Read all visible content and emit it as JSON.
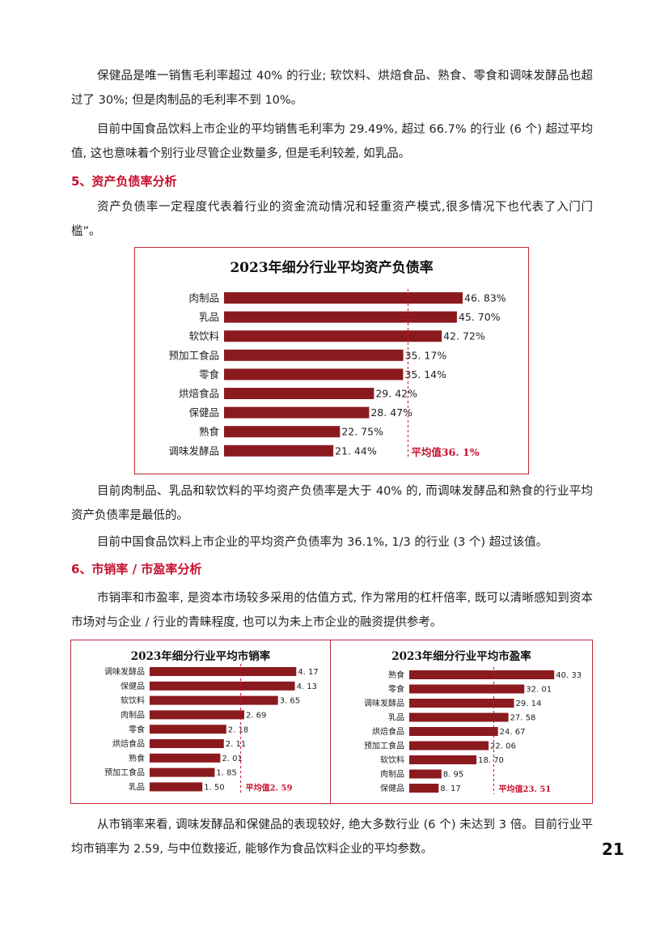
{
  "paragraphs": {
    "p1": "保健品是唯一销售毛利率超过 40% 的行业; 软饮料、烘焙食品、熟食、零食和调味发酵品也超过了 30%; 但是肉制品的毛利率不到 10%。",
    "p2": "目前中国食品饮料上市企业的平均销售毛利率为 29.49%, 超过 66.7% 的行业 (6 个) 超过平均值, 这也意味着个别行业尽管企业数量多, 但是毛利较差, 如乳品。",
    "p3": "资产负债率一定程度代表着行业的资金流动情况和轻重资产模式,很多情况下也代表了入门门槛”。",
    "p4": "目前肉制品、乳品和软饮料的平均资产负债率是大于 40% 的, 而调味发酵品和熟食的行业平均资产负债率是最低的。",
    "p5": "目前中国食品饮料上市企业的平均资产负债率为 36.1%, 1/3 的行业 (3 个) 超过该值。",
    "p6": "市销率和市盈率, 是资本市场较多采用的估值方式, 作为常用的杠杆倍率, 既可以清晰感知到资本市场对与企业 / 行业的青睐程度, 也可以为未上市企业的融资提供参考。",
    "p7": "从市销率来看, 调味发酵品和保健品的表现较好, 绝大多数行业 (6 个) 未达到 3 倍。目前行业平均市销率为 2.59, 与中位数接近, 能够作为食品饮料企业的平均参数。"
  },
  "headings": {
    "h5": "5、资产负债率分析",
    "h6": "6、市销率 / 市盈率分析"
  },
  "page_number": "21",
  "colors": {
    "bar": "#8b1a1f",
    "avg_line": "#c8102e",
    "heading": "#c8102e"
  },
  "chart_data": [
    {
      "type": "bar",
      "orientation": "horizontal",
      "title": "2023年细分行业平均资产负债率",
      "categories": [
        "肉制品",
        "乳品",
        "软饮料",
        "预加工食品",
        "零食",
        "烘焙食品",
        "保健品",
        "熟食",
        "调味发酵品"
      ],
      "values": [
        46.83,
        45.7,
        42.72,
        35.17,
        35.14,
        29.42,
        28.47,
        22.75,
        21.44
      ],
      "value_labels": [
        "46. 83%",
        "45. 70%",
        "42. 72%",
        "35. 17%",
        "35. 14%",
        "29. 42%",
        "28. 47%",
        "22. 75%",
        "21. 44%"
      ],
      "average": 36.1,
      "average_label": "平均值36. 1%",
      "xlim": [
        0,
        50
      ]
    },
    {
      "type": "bar",
      "orientation": "horizontal",
      "title": "2023年细分行业平均市销率",
      "categories": [
        "调味发酵品",
        "保健品",
        "软饮料",
        "肉制品",
        "零食",
        "烘焙食品",
        "熟食",
        "预加工食品",
        "乳品"
      ],
      "values": [
        4.17,
        4.13,
        3.65,
        2.69,
        2.18,
        2.11,
        2.01,
        1.85,
        1.5
      ],
      "value_labels": [
        "4. 17",
        "4. 13",
        "3. 65",
        "2. 69",
        "2. 18",
        "2. 11",
        "2. 01",
        "1. 85",
        "1. 50"
      ],
      "average": 2.59,
      "average_label": "平均值2. 59",
      "xlim": [
        0,
        4.6
      ]
    },
    {
      "type": "bar",
      "orientation": "horizontal",
      "title": "2023年细分行业平均市盈率",
      "categories": [
        "熟食",
        "零食",
        "调味发酵品",
        "乳品",
        "烘焙食品",
        "预加工食品",
        "软饮料",
        "肉制品",
        "保健品"
      ],
      "values": [
        40.33,
        32.01,
        29.14,
        27.58,
        24.67,
        22.06,
        18.7,
        8.95,
        8.17
      ],
      "value_labels": [
        "40. 33",
        "32. 01",
        "29. 14",
        "27. 58",
        "24. 67",
        "22. 06",
        "18. 70",
        "8. 95",
        "8. 17"
      ],
      "average": 23.51,
      "average_label": "平均值23. 51",
      "xlim": [
        0,
        45
      ]
    }
  ]
}
